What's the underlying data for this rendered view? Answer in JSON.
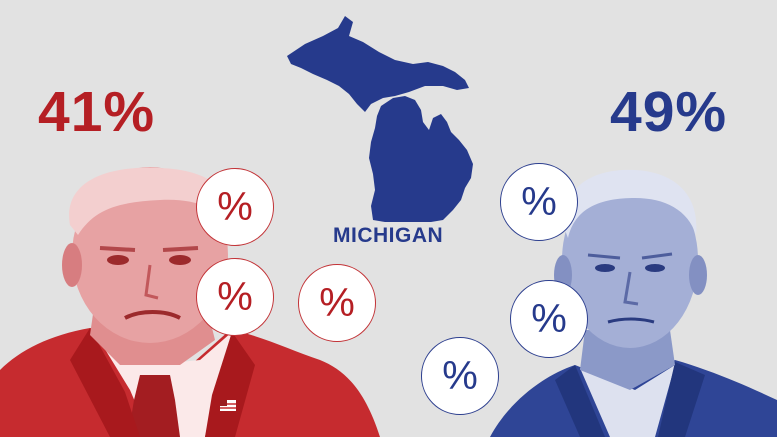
{
  "candidates": {
    "left": {
      "percent": "41%",
      "color": "#b51f24"
    },
    "right": {
      "percent": "49%",
      "color": "#263a8c"
    }
  },
  "state": {
    "label": "MICHIGAN",
    "color": "#263a8c"
  },
  "bubbles": {
    "symbol": "%"
  },
  "icons": [
    "michigan-map-icon",
    "flag-pin-icon"
  ]
}
